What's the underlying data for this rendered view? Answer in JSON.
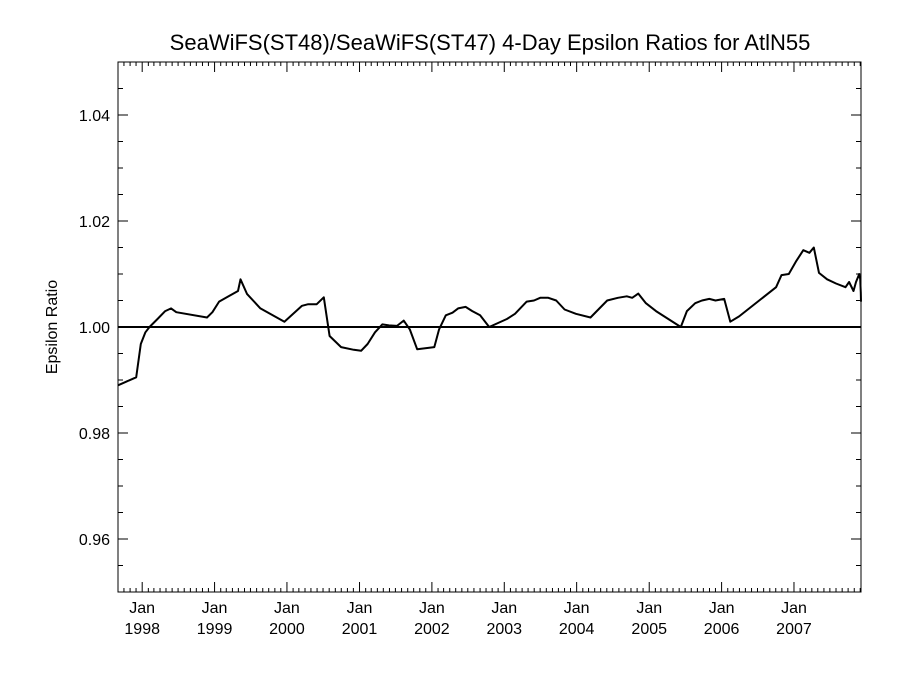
{
  "chart_data": {
    "type": "line",
    "title": "SeaWiFS(ST48)/SeaWiFS(ST47) 4-Day Epsilon Ratios for AtlN55",
    "xlabel": "",
    "ylabel": "Epsilon Ratio",
    "xlim": [
      "1997-09-01",
      "2007-12-05"
    ],
    "ylim": [
      0.95,
      1.05
    ],
    "y_ticks": [
      0.96,
      0.98,
      1.0,
      1.02,
      1.04
    ],
    "y_tick_labels": [
      "0.96",
      "0.98",
      "1.00",
      "1.02",
      "1.04"
    ],
    "x_tick_labels": [
      {
        "date": "1998-01-01",
        "month": "Jan",
        "year": "1998"
      },
      {
        "date": "1999-01-01",
        "month": "Jan",
        "year": "1999"
      },
      {
        "date": "2000-01-01",
        "month": "Jan",
        "year": "2000"
      },
      {
        "date": "2001-01-01",
        "month": "Jan",
        "year": "2001"
      },
      {
        "date": "2002-01-01",
        "month": "Jan",
        "year": "2002"
      },
      {
        "date": "2003-01-01",
        "month": "Jan",
        "year": "2003"
      },
      {
        "date": "2004-01-01",
        "month": "Jan",
        "year": "2004"
      },
      {
        "date": "2005-01-01",
        "month": "Jan",
        "year": "2005"
      },
      {
        "date": "2006-01-01",
        "month": "Jan",
        "year": "2006"
      },
      {
        "date": "2007-01-01",
        "month": "Jan",
        "year": "2007"
      }
    ],
    "reference_line": 1.0,
    "grid": false,
    "series": [
      {
        "points": [
          [
            "1997-09-01",
            0.989
          ],
          [
            "1997-12-02",
            0.9905
          ],
          [
            "1997-12-25",
            0.9968
          ],
          [
            "1998-01-17",
            0.999
          ],
          [
            "1998-02-07",
            1.0
          ],
          [
            "1998-03-19",
            1.0015
          ],
          [
            "1998-04-27",
            1.003
          ],
          [
            "1998-05-27",
            1.0035
          ],
          [
            "1998-06-22",
            1.0028
          ],
          [
            "1998-11-24",
            1.0018
          ],
          [
            "1998-12-21",
            1.0028
          ],
          [
            "1999-01-24",
            1.0048
          ],
          [
            "1999-03-13",
            1.0058
          ],
          [
            "1999-04-29",
            1.0068
          ],
          [
            "1999-05-12",
            1.009
          ],
          [
            "1999-06-14",
            1.0062
          ],
          [
            "1999-08-20",
            1.0035
          ],
          [
            "1999-12-19",
            1.001
          ],
          [
            "2000-03-17",
            1.004
          ],
          [
            "2000-04-17",
            1.0043
          ],
          [
            "2000-05-30",
            1.0043
          ],
          [
            "2000-07-05",
            1.0056
          ],
          [
            "2000-08-03",
            0.9983
          ],
          [
            "2000-09-30",
            0.9962
          ],
          [
            "2000-12-03",
            0.9957
          ],
          [
            "2001-01-09",
            0.9955
          ],
          [
            "2001-02-11",
            0.9968
          ],
          [
            "2001-03-20",
            0.999
          ],
          [
            "2001-04-26",
            1.0005
          ],
          [
            "2001-05-29",
            1.0003
          ],
          [
            "2001-07-09",
            1.0002
          ],
          [
            "2001-08-12",
            1.0012
          ],
          [
            "2001-09-12",
            0.9995
          ],
          [
            "2001-10-19",
            0.9958
          ],
          [
            "2002-01-13",
            0.9962
          ],
          [
            "2002-02-06",
            0.9995
          ],
          [
            "2002-03-12",
            1.0022
          ],
          [
            "2002-04-15",
            1.0027
          ],
          [
            "2002-05-13",
            1.0035
          ],
          [
            "2002-06-20",
            1.0038
          ],
          [
            "2002-07-24",
            1.003
          ],
          [
            "2002-09-01",
            1.0022
          ],
          [
            "2002-10-17",
            1.0
          ],
          [
            "2003-01-14",
            1.0015
          ],
          [
            "2003-02-24",
            1.0025
          ],
          [
            "2003-04-24",
            1.0048
          ],
          [
            "2003-05-31",
            1.005
          ],
          [
            "2003-07-01",
            1.0055
          ],
          [
            "2003-08-11",
            1.0055
          ],
          [
            "2003-09-20",
            1.005
          ],
          [
            "2003-11-01",
            1.0033
          ],
          [
            "2003-12-28",
            1.0025
          ],
          [
            "2004-03-11",
            1.0018
          ],
          [
            "2004-06-03",
            1.005
          ],
          [
            "2004-07-27",
            1.0055
          ],
          [
            "2004-09-10",
            1.0058
          ],
          [
            "2004-10-07",
            1.0055
          ],
          [
            "2004-11-07",
            1.0063
          ],
          [
            "2004-12-15",
            1.0045
          ],
          [
            "2005-02-04",
            1.003
          ],
          [
            "2005-06-09",
            1.0
          ],
          [
            "2005-07-10",
            1.003
          ],
          [
            "2005-08-21",
            1.0045
          ],
          [
            "2005-09-24",
            1.005
          ],
          [
            "2005-10-31",
            1.0053
          ],
          [
            "2005-12-01",
            1.005
          ],
          [
            "2006-01-14",
            1.0053
          ],
          [
            "2006-02-14",
            1.001
          ],
          [
            "2006-03-30",
            1.002
          ],
          [
            "2006-10-03",
            1.0075
          ],
          [
            "2006-10-30",
            1.0098
          ],
          [
            "2006-12-06",
            1.01
          ],
          [
            "2007-01-13",
            1.0125
          ],
          [
            "2007-02-17",
            1.0145
          ],
          [
            "2007-03-20",
            1.014
          ],
          [
            "2007-04-11",
            1.015
          ],
          [
            "2007-05-07",
            1.0102
          ],
          [
            "2007-06-17",
            1.009
          ],
          [
            "2007-08-01",
            1.0082
          ],
          [
            "2007-09-18",
            1.0075
          ],
          [
            "2007-10-06",
            1.0085
          ],
          [
            "2007-10-28",
            1.0068
          ],
          [
            "2007-11-10",
            1.0085
          ],
          [
            "2007-11-21",
            1.0095
          ],
          [
            "2007-11-26",
            1.01
          ],
          [
            "2007-11-29",
            1.0093
          ],
          [
            "2007-12-01",
            1.0092
          ],
          [
            "2007-12-02",
            1.0082
          ],
          [
            "2007-12-04",
            1.0065
          ],
          [
            "2007-12-05",
            1.0048
          ]
        ]
      }
    ]
  }
}
